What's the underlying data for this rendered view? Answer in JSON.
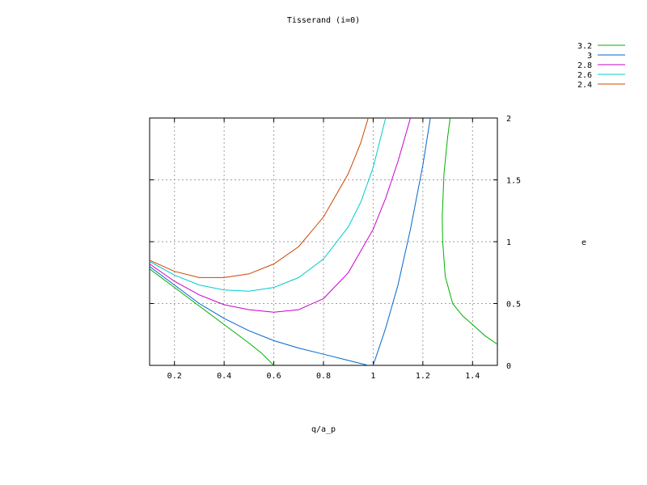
{
  "chart_data": {
    "type": "line",
    "title": "Tisserand (i=0)",
    "xlabel": "q/a_p",
    "ylabel": "e",
    "xlim": [
      0.1,
      1.5
    ],
    "ylim": [
      0,
      2
    ],
    "x_ticks": [
      {
        "value": 0.2,
        "label": "0.2"
      },
      {
        "value": 0.4,
        "label": "0.4"
      },
      {
        "value": 0.6,
        "label": "0.6"
      },
      {
        "value": 0.8,
        "label": "0.8"
      },
      {
        "value": 1.0,
        "label": "1"
      },
      {
        "value": 1.2,
        "label": "1.2"
      },
      {
        "value": 1.4,
        "label": "1.4"
      }
    ],
    "y_ticks": [
      {
        "value": 0,
        "label": "0"
      },
      {
        "value": 0.5,
        "label": "0.5"
      },
      {
        "value": 1.0,
        "label": "1"
      },
      {
        "value": 1.5,
        "label": "1.5"
      },
      {
        "value": 2.0,
        "label": "2"
      }
    ],
    "grid": true,
    "y_axis_side": "right",
    "legend_position": "top-right",
    "series": [
      {
        "name": "3.2",
        "color": "#00b000",
        "segments": [
          [
            [
              0.1,
              0.78
            ],
            [
              0.2,
              0.63
            ],
            [
              0.3,
              0.48
            ],
            [
              0.4,
              0.33
            ],
            [
              0.5,
              0.18
            ],
            [
              0.55,
              0.1
            ],
            [
              0.6,
              0.0
            ]
          ],
          [
            [
              1.31,
              2.0
            ],
            [
              1.3,
              1.85
            ],
            [
              1.285,
              1.55
            ],
            [
              1.278,
              1.2
            ],
            [
              1.28,
              1.0
            ],
            [
              1.29,
              0.72
            ],
            [
              1.32,
              0.5
            ],
            [
              1.36,
              0.4
            ],
            [
              1.4,
              0.33
            ],
            [
              1.45,
              0.24
            ],
            [
              1.5,
              0.17
            ]
          ]
        ]
      },
      {
        "name": "3",
        "color": "#0066cc",
        "segments": [
          [
            [
              0.1,
              0.8
            ],
            [
              0.2,
              0.65
            ],
            [
              0.3,
              0.5
            ],
            [
              0.4,
              0.38
            ],
            [
              0.5,
              0.28
            ],
            [
              0.6,
              0.2
            ],
            [
              0.7,
              0.14
            ],
            [
              0.8,
              0.09
            ],
            [
              0.9,
              0.04
            ],
            [
              0.98,
              0.0
            ]
          ],
          [
            [
              1.0,
              0.0
            ],
            [
              1.05,
              0.3
            ],
            [
              1.1,
              0.65
            ],
            [
              1.15,
              1.1
            ],
            [
              1.2,
              1.62
            ],
            [
              1.23,
              2.0
            ]
          ]
        ]
      },
      {
        "name": "2.8",
        "color": "#cc00cc",
        "segments": [
          [
            [
              0.1,
              0.82
            ],
            [
              0.2,
              0.68
            ],
            [
              0.3,
              0.57
            ],
            [
              0.4,
              0.49
            ],
            [
              0.5,
              0.45
            ],
            [
              0.6,
              0.43
            ],
            [
              0.7,
              0.45
            ],
            [
              0.8,
              0.54
            ],
            [
              0.9,
              0.75
            ],
            [
              1.0,
              1.1
            ],
            [
              1.05,
              1.35
            ],
            [
              1.1,
              1.65
            ],
            [
              1.15,
              2.0
            ]
          ]
        ]
      },
      {
        "name": "2.6",
        "color": "#00cccc",
        "segments": [
          [
            [
              0.1,
              0.84
            ],
            [
              0.2,
              0.73
            ],
            [
              0.3,
              0.65
            ],
            [
              0.4,
              0.61
            ],
            [
              0.5,
              0.6
            ],
            [
              0.6,
              0.63
            ],
            [
              0.7,
              0.71
            ],
            [
              0.8,
              0.86
            ],
            [
              0.9,
              1.12
            ],
            [
              0.95,
              1.32
            ],
            [
              1.0,
              1.6
            ],
            [
              1.05,
              2.0
            ]
          ]
        ]
      },
      {
        "name": "2.4",
        "color": "#cc4400",
        "segments": [
          [
            [
              0.1,
              0.85
            ],
            [
              0.2,
              0.76
            ],
            [
              0.3,
              0.71
            ],
            [
              0.4,
              0.71
            ],
            [
              0.5,
              0.74
            ],
            [
              0.6,
              0.82
            ],
            [
              0.7,
              0.96
            ],
            [
              0.8,
              1.2
            ],
            [
              0.9,
              1.55
            ],
            [
              0.95,
              1.8
            ],
            [
              0.98,
              2.0
            ]
          ]
        ]
      }
    ]
  }
}
